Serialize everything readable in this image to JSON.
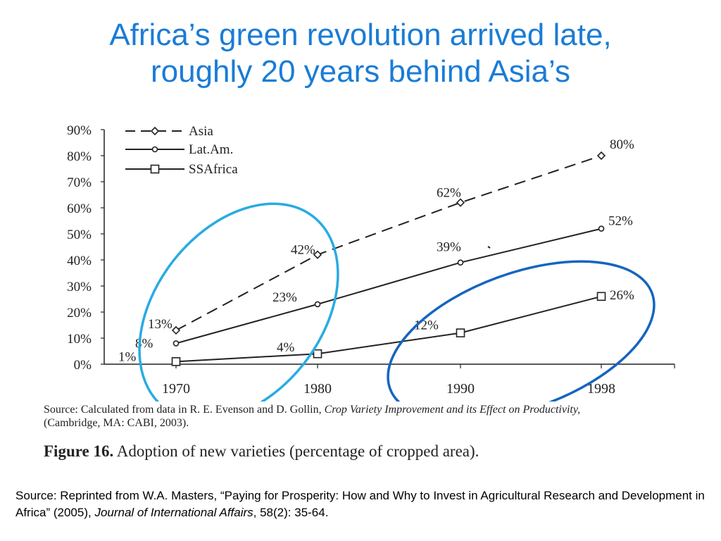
{
  "slide": {
    "title_line1": "Africa’s green revolution arrived late,",
    "title_line2": "roughly 20 years behind Asia’s",
    "source_prefix": "Source:  Reprinted from W.A. Masters, “Paying for Prosperity:  How and Why to Invest in Agricultural Research and Development in Africa” (2005), ",
    "source_journal": "Journal of International Affairs",
    "source_suffix": ", 58(2): 35-64."
  },
  "figure": {
    "note_prefix": "Source: Calculated from data in R. E. Evenson and D. Gollin, ",
    "note_book": "Crop Variety Improvement and its Effect on Productivity,",
    "note_suffix": "(Cambridge, MA: CABI, 2003).",
    "caption_label": "Figure 16.",
    "caption_text": " Adoption of new varieties (percentage of cropped area)."
  },
  "colors": {
    "title": "#1a7cd6",
    "ellipse_asia_window": "#29abe2",
    "ellipse_africa_window": "#1565c0",
    "lines": "#222222"
  },
  "chart_data": {
    "type": "line",
    "title": "",
    "xlabel": "",
    "ylabel": "",
    "categories": [
      "1970",
      "1980",
      "1990",
      "1998"
    ],
    "x": [
      1970,
      1980,
      1990,
      1998
    ],
    "ylim": [
      0,
      90
    ],
    "yticks": [
      "0%",
      "10%",
      "20%",
      "30%",
      "40%",
      "50%",
      "60%",
      "70%",
      "80%",
      "90%"
    ],
    "grid": false,
    "legend_position": "top-left",
    "series": [
      {
        "name": "Asia",
        "values": [
          13,
          42,
          62,
          80
        ],
        "labels": [
          "13%",
          "42%",
          "62%",
          "80%"
        ],
        "marker": "diamond",
        "dash": "dashed"
      },
      {
        "name": "Lat.Am.",
        "values": [
          8,
          23,
          39,
          52
        ],
        "labels": [
          "8%",
          "23%",
          "39%",
          "52%"
        ],
        "marker": "circle",
        "dash": "solid"
      },
      {
        "name": "SSAfrica",
        "values": [
          1,
          4,
          12,
          26
        ],
        "labels": [
          "1%",
          "4%",
          "12%",
          "26%"
        ],
        "marker": "square",
        "dash": "solid"
      }
    ]
  }
}
